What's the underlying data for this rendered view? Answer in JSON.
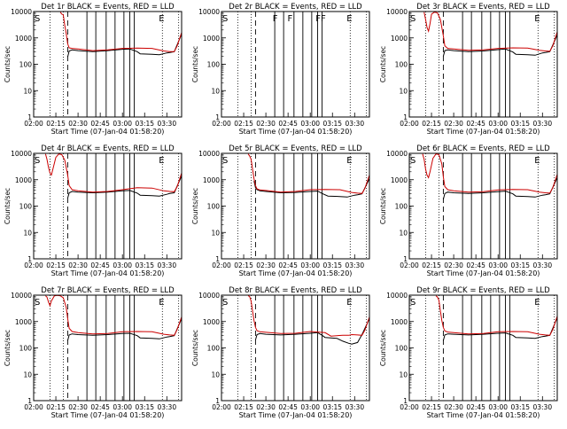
{
  "colors": {
    "events": "#000000",
    "lld": "#cc0000",
    "background": "#ffffff"
  },
  "layout": "3x3 grid of detector rate plots",
  "shared": {
    "xlabel": "Start Time (07-Jan-04 01:58:20)",
    "ylabel": "Counts/sec",
    "x_tick_labels": [
      "02:00",
      "02:15",
      "02:30",
      "02:45",
      "03:00",
      "03:15",
      "03:30"
    ],
    "y_tick_labels": [
      "1",
      "10",
      "100",
      "1000",
      "10000"
    ]
  },
  "chart_data": [
    {
      "type": "line",
      "title": "Det 1r  BLACK = Events, RED = LLD",
      "xlabel": "Start Time (07-Jan-04 01:58:20)",
      "ylabel": "Counts/sec",
      "x_unit": "minutes after 02:00",
      "xlim": [
        0,
        100
      ],
      "ylim": [
        1,
        10000
      ],
      "yscale": "log",
      "dotted_lines": [
        11,
        20,
        87,
        98
      ],
      "dashed_lines": [
        23
      ],
      "solid_lines": [
        36,
        42,
        49,
        55,
        61,
        65,
        68
      ],
      "markers": [
        {
          "x": 0,
          "text": "S"
        },
        {
          "x": 84,
          "text": "E"
        }
      ],
      "series": [
        {
          "name": "Events",
          "color": "#000000",
          "x": [
            23,
            24,
            26,
            30,
            40,
            50,
            60,
            65,
            70,
            72,
            80,
            85,
            90,
            92,
            95,
            100
          ],
          "y": [
            190,
            320,
            350,
            330,
            300,
            330,
            370,
            380,
            300,
            250,
            240,
            230,
            270,
            280,
            300,
            1400
          ]
        },
        {
          "name": "LLD",
          "color": "#cc0000",
          "x": [
            18,
            19,
            20,
            21,
            22,
            23,
            24,
            26,
            30,
            40,
            50,
            60,
            70,
            80,
            88,
            92,
            95,
            97,
            100
          ],
          "y": [
            9500,
            8000,
            7500,
            3000,
            1500,
            600,
            420,
            400,
            380,
            330,
            350,
            400,
            410,
            400,
            320,
            300,
            300,
            500,
            1600
          ]
        }
      ]
    },
    {
      "type": "line",
      "title": "Det 2r  BLACK = Events, RED = LLD",
      "xlabel": "Start Time (07-Jan-04 01:58:20)",
      "ylabel": "Counts/sec",
      "x_unit": "minutes after 02:00",
      "xlim": [
        0,
        100
      ],
      "ylim": [
        1,
        10000
      ],
      "yscale": "log",
      "dotted_lines": [
        11,
        20,
        87,
        98
      ],
      "dashed_lines": [
        23
      ],
      "solid_lines": [
        36,
        42,
        49,
        55,
        61,
        65,
        68
      ],
      "markers": [
        {
          "x": 0,
          "text": "S"
        },
        {
          "x": 34,
          "text": "F"
        },
        {
          "x": 44,
          "text": "F"
        },
        {
          "x": 63,
          "text": "FF"
        },
        {
          "x": 84,
          "text": "E"
        }
      ],
      "series": [
        {
          "name": "Events",
          "color": "#000000",
          "x": [],
          "y": []
        },
        {
          "name": "LLD",
          "color": "#cc0000",
          "x": [],
          "y": []
        }
      ]
    },
    {
      "type": "line",
      "title": "Det 3r  BLACK = Events, RED = LLD",
      "xlabel": "Start Time (07-Jan-04 01:58:20)",
      "ylabel": "Counts/sec",
      "x_unit": "minutes after 02:00",
      "xlim": [
        0,
        100
      ],
      "ylim": [
        1,
        10000
      ],
      "yscale": "log",
      "dotted_lines": [
        11,
        20,
        87,
        98
      ],
      "dashed_lines": [
        23
      ],
      "solid_lines": [
        36,
        42,
        49,
        55,
        61,
        65,
        68
      ],
      "markers": [
        {
          "x": 0,
          "text": "S"
        },
        {
          "x": 84,
          "text": "E"
        }
      ],
      "series": [
        {
          "name": "Events",
          "color": "#000000",
          "x": [
            23,
            24,
            26,
            30,
            40,
            50,
            60,
            65,
            70,
            72,
            80,
            85,
            90,
            92,
            95,
            100
          ],
          "y": [
            200,
            330,
            350,
            330,
            300,
            320,
            360,
            380,
            290,
            240,
            230,
            220,
            270,
            280,
            300,
            1300
          ]
        },
        {
          "name": "LLD",
          "color": "#cc0000",
          "x": [
            10,
            11,
            12,
            13,
            14,
            15,
            17,
            19,
            21,
            23,
            24,
            26,
            30,
            40,
            50,
            60,
            70,
            80,
            88,
            92,
            95,
            97,
            100
          ],
          "y": [
            9500,
            5000,
            2500,
            1800,
            3500,
            8000,
            9500,
            9000,
            5000,
            1200,
            500,
            400,
            380,
            340,
            350,
            400,
            420,
            410,
            340,
            320,
            310,
            500,
            1700
          ]
        }
      ]
    },
    {
      "type": "line",
      "title": "Det 4r  BLACK = Events, RED = LLD",
      "xlabel": "Start Time (07-Jan-04 01:58:20)",
      "ylabel": "Counts/sec",
      "x_unit": "minutes after 02:00",
      "xlim": [
        0,
        100
      ],
      "ylim": [
        1,
        10000
      ],
      "yscale": "log",
      "dotted_lines": [
        11,
        20,
        87,
        98
      ],
      "dashed_lines": [
        23
      ],
      "solid_lines": [
        36,
        42,
        49,
        55,
        61,
        65,
        68
      ],
      "markers": [
        {
          "x": 0,
          "text": "S"
        },
        {
          "x": 84,
          "text": "E"
        }
      ],
      "series": [
        {
          "name": "Events",
          "color": "#000000",
          "x": [
            23,
            24,
            26,
            30,
            40,
            50,
            60,
            65,
            70,
            72,
            80,
            85,
            90,
            92,
            95,
            100
          ],
          "y": [
            200,
            320,
            360,
            340,
            320,
            340,
            380,
            390,
            310,
            260,
            250,
            240,
            280,
            300,
            320,
            1400
          ]
        },
        {
          "name": "LLD",
          "color": "#cc0000",
          "x": [
            8,
            9,
            10,
            11,
            12,
            13,
            15,
            17,
            19,
            21,
            23,
            24,
            26,
            30,
            40,
            50,
            60,
            70,
            80,
            88,
            92,
            95,
            97,
            100
          ],
          "y": [
            9500,
            6000,
            3000,
            1800,
            1500,
            2500,
            7000,
            9500,
            9000,
            5500,
            1500,
            600,
            420,
            380,
            340,
            360,
            420,
            500,
            480,
            380,
            360,
            350,
            550,
            1800
          ]
        }
      ]
    },
    {
      "type": "line",
      "title": "Det 5r  BLACK = Events, RED = LLD",
      "xlabel": "Start Time (07-Jan-04 01:58:20)",
      "ylabel": "Counts/sec",
      "x_unit": "minutes after 02:00",
      "xlim": [
        0,
        100
      ],
      "ylim": [
        1,
        10000
      ],
      "yscale": "log",
      "dotted_lines": [
        11,
        20,
        87,
        98
      ],
      "dashed_lines": [
        23
      ],
      "solid_lines": [
        36,
        42,
        49,
        55,
        61,
        65,
        68
      ],
      "markers": [
        {
          "x": 0,
          "text": "S"
        },
        {
          "x": 84,
          "text": "E"
        }
      ],
      "series": [
        {
          "name": "Events",
          "color": "#000000",
          "x": [
            22,
            23,
            24,
            26,
            30,
            40,
            50,
            60,
            65,
            68,
            72,
            80,
            85,
            90,
            92,
            95,
            100
          ],
          "y": [
            900,
            500,
            420,
            380,
            360,
            320,
            330,
            360,
            370,
            300,
            240,
            230,
            220,
            260,
            270,
            290,
            1100
          ]
        },
        {
          "name": "LLD",
          "color": "#cc0000",
          "x": [
            18,
            19,
            20,
            21,
            22,
            23,
            24,
            26,
            30,
            40,
            50,
            60,
            70,
            80,
            88,
            92,
            95,
            97,
            100
          ],
          "y": [
            9500,
            8000,
            6000,
            2500,
            1100,
            600,
            450,
            410,
            390,
            340,
            360,
            420,
            430,
            420,
            330,
            310,
            300,
            480,
            1500
          ]
        }
      ]
    },
    {
      "type": "line",
      "title": "Det 6r  BLACK = Events, RED = LLD",
      "xlabel": "Start Time (07-Jan-04 01:58:20)",
      "ylabel": "Counts/sec",
      "x_unit": "minutes after 02:00",
      "xlim": [
        0,
        100
      ],
      "ylim": [
        1,
        10000
      ],
      "yscale": "log",
      "dotted_lines": [
        11,
        20,
        87,
        98
      ],
      "dashed_lines": [
        23
      ],
      "solid_lines": [
        36,
        42,
        49,
        55,
        61,
        65,
        68
      ],
      "markers": [
        {
          "x": 0,
          "text": "S"
        },
        {
          "x": 84,
          "text": "E"
        }
      ],
      "series": [
        {
          "name": "Events",
          "color": "#000000",
          "x": [
            23,
            24,
            26,
            30,
            40,
            50,
            60,
            65,
            70,
            72,
            80,
            85,
            90,
            92,
            95,
            100
          ],
          "y": [
            180,
            300,
            340,
            320,
            300,
            320,
            350,
            370,
            290,
            240,
            230,
            220,
            260,
            270,
            290,
            1200
          ]
        },
        {
          "name": "LLD",
          "color": "#cc0000",
          "x": [
            9,
            10,
            11,
            12,
            13,
            14,
            16,
            18,
            20,
            22,
            23,
            24,
            26,
            30,
            40,
            50,
            60,
            70,
            80,
            88,
            92,
            95,
            97,
            100
          ],
          "y": [
            9500,
            6000,
            2500,
            1500,
            1200,
            2000,
            6500,
            9500,
            9000,
            4000,
            1300,
            550,
            420,
            380,
            340,
            350,
            410,
            430,
            420,
            340,
            320,
            310,
            500,
            1600
          ]
        }
      ]
    },
    {
      "type": "line",
      "title": "Det 7r  BLACK = Events, RED = LLD",
      "xlabel": "Start Time (07-Jan-04 01:58:20)",
      "ylabel": "Counts/sec",
      "x_unit": "minutes after 02:00",
      "xlim": [
        0,
        100
      ],
      "ylim": [
        1,
        10000
      ],
      "yscale": "log",
      "dotted_lines": [
        11,
        20,
        87,
        98
      ],
      "dashed_lines": [
        23
      ],
      "solid_lines": [
        36,
        42,
        49,
        55,
        61,
        65,
        68
      ],
      "markers": [
        {
          "x": 0,
          "text": "S"
        },
        {
          "x": 84,
          "text": "E"
        }
      ],
      "series": [
        {
          "name": "Events",
          "color": "#000000",
          "x": [
            23,
            24,
            26,
            30,
            40,
            50,
            60,
            65,
            70,
            72,
            80,
            85,
            90,
            92,
            95,
            100
          ],
          "y": [
            190,
            310,
            340,
            320,
            300,
            320,
            350,
            360,
            290,
            240,
            230,
            220,
            260,
            270,
            290,
            1300
          ]
        },
        {
          "name": "LLD",
          "color": "#cc0000",
          "x": [
            8,
            9,
            10,
            11,
            12,
            14,
            16,
            18,
            20,
            22,
            23,
            24,
            26,
            30,
            40,
            50,
            60,
            70,
            80,
            88,
            92,
            95,
            97,
            100
          ],
          "y": [
            9500,
            8500,
            5500,
            4000,
            6000,
            9500,
            9800,
            9500,
            8000,
            3500,
            1300,
            550,
            420,
            380,
            340,
            350,
            410,
            420,
            410,
            330,
            310,
            300,
            500,
            1500
          ]
        }
      ]
    },
    {
      "type": "line",
      "title": "Det 8r  BLACK = Events, RED = LLD",
      "xlabel": "Start Time (07-Jan-04 01:58:20)",
      "ylabel": "Counts/sec",
      "x_unit": "minutes after 02:00",
      "xlim": [
        0,
        100
      ],
      "ylim": [
        1,
        10000
      ],
      "yscale": "log",
      "dotted_lines": [
        11,
        20,
        87,
        98
      ],
      "dashed_lines": [
        23
      ],
      "solid_lines": [
        36,
        42,
        49,
        55,
        61,
        65,
        68
      ],
      "markers": [
        {
          "x": 0,
          "text": "S"
        },
        {
          "x": 84,
          "text": "E"
        }
      ],
      "series": [
        {
          "name": "Events",
          "color": "#000000",
          "x": [
            23,
            24,
            26,
            30,
            40,
            50,
            60,
            65,
            68,
            70,
            74,
            78,
            82,
            86,
            88,
            92,
            95,
            100
          ],
          "y": [
            200,
            320,
            350,
            330,
            310,
            330,
            360,
            380,
            300,
            250,
            240,
            230,
            180,
            150,
            140,
            160,
            320,
            1300
          ]
        },
        {
          "name": "LLD",
          "color": "#cc0000",
          "x": [
            18,
            19,
            20,
            21,
            22,
            23,
            24,
            26,
            30,
            40,
            50,
            60,
            70,
            74,
            78,
            82,
            86,
            88,
            92,
            95,
            97,
            100
          ],
          "y": [
            9500,
            9000,
            6000,
            2500,
            1100,
            600,
            450,
            410,
            390,
            350,
            360,
            420,
            380,
            280,
            290,
            300,
            300,
            320,
            310,
            300,
            480,
            1500
          ]
        }
      ]
    },
    {
      "type": "line",
      "title": "Det 9r  BLACK = Events, RED = LLD",
      "xlabel": "Start Time (07-Jan-04 01:58:20)",
      "ylabel": "Counts/sec",
      "x_unit": "minutes after 02:00",
      "xlim": [
        0,
        100
      ],
      "ylim": [
        1,
        10000
      ],
      "yscale": "log",
      "dotted_lines": [
        11,
        20,
        87,
        98
      ],
      "dashed_lines": [
        23
      ],
      "solid_lines": [
        36,
        42,
        49,
        55,
        61,
        65,
        68
      ],
      "markers": [
        {
          "x": 0,
          "text": "S"
        },
        {
          "x": 84,
          "text": "E"
        }
      ],
      "series": [
        {
          "name": "Events",
          "color": "#000000",
          "x": [
            23,
            24,
            26,
            30,
            40,
            50,
            60,
            65,
            70,
            72,
            80,
            85,
            90,
            92,
            95,
            100
          ],
          "y": [
            190,
            310,
            340,
            330,
            310,
            330,
            360,
            370,
            300,
            250,
            240,
            230,
            270,
            280,
            300,
            1400
          ]
        },
        {
          "name": "LLD",
          "color": "#cc0000",
          "x": [
            18,
            19,
            20,
            21,
            22,
            23,
            24,
            26,
            30,
            40,
            50,
            60,
            70,
            80,
            88,
            92,
            95,
            97,
            100
          ],
          "y": [
            9500,
            8500,
            6500,
            2500,
            1100,
            600,
            440,
            400,
            380,
            340,
            350,
            410,
            420,
            410,
            330,
            310,
            300,
            500,
            1600
          ]
        }
      ]
    }
  ]
}
